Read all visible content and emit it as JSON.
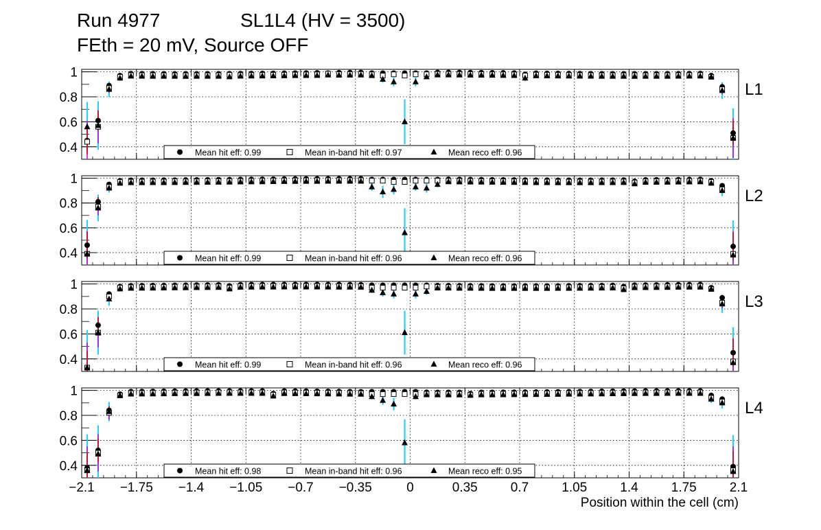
{
  "header": {
    "run": "Run 4977",
    "chamber": "SL1L4 (HV = 3500)",
    "settings": "FEth = 20 mV, Source OFF"
  },
  "legend_labels": {
    "hit": "Mean hit  eff: ",
    "inband": "Mean in-band hit eff: ",
    "reco": "Mean reco eff: "
  },
  "colors": {
    "hit_error": "#cc0000",
    "inband_error": "#cc00cc",
    "reco_error": "#33ccee",
    "grid": "#000000"
  },
  "chart_data": {
    "type": "scatter",
    "xlabel": "Position within the cell (cm)",
    "xlim": [
      -2.1,
      2.1
    ],
    "ylim": [
      0.3,
      1.02
    ],
    "x_ticks": [
      "-2.1",
      "-1.75",
      "-1.4",
      "-1.05",
      "-0.7",
      "-0.35",
      "0",
      "0.35",
      "0.7",
      "1.05",
      "1.4",
      "1.75",
      "2.1"
    ],
    "y_ticks": [
      "0.4",
      "0.6",
      "0.8",
      "1"
    ],
    "bins": 60,
    "grid": true,
    "panels": [
      {
        "label": "L1",
        "mean_hit_eff": "0.99",
        "mean_inband_eff": "0.97",
        "mean_reco_eff": "0.96",
        "special": {
          "0": [
            0.45,
            0.44,
            0.56
          ],
          "1": [
            0.61,
            0.56,
            0.57
          ],
          "2": [
            0.89,
            0.87,
            0.86
          ],
          "3": [
            0.97,
            0.96,
            0.95
          ],
          "40": [
            0.98,
            0.97,
            0.95
          ],
          "26": [
            0.99,
            0.98,
            0.97
          ],
          "27": [
            0.99,
            0.97,
            0.94
          ],
          "28": [
            0.99,
            0.98,
            0.92
          ],
          "29": [
            0.99,
            0.97,
            0.6
          ],
          "30": [
            0.99,
            0.98,
            0.92
          ],
          "31": [
            0.99,
            0.98,
            0.96
          ],
          "57": [
            0.97,
            0.96,
            0.96
          ],
          "58": [
            0.88,
            0.86,
            0.85
          ],
          "59": [
            0.51,
            0.47,
            0.47
          ]
        },
        "dips": [
          [
            13,
            0.985,
            0.975,
            0.96
          ],
          [
            22,
            0.99,
            0.985,
            0.975
          ]
        ]
      },
      {
        "label": "L2",
        "mean_hit_eff": "0.99",
        "mean_inband_eff": "0.96",
        "mean_reco_eff": "0.96",
        "special": {
          "0": [
            0.46,
            0.39,
            0.39
          ],
          "1": [
            0.81,
            0.77,
            0.76
          ],
          "2": [
            0.95,
            0.93,
            0.92
          ],
          "3": [
            0.98,
            0.97,
            0.96
          ],
          "26": [
            0.99,
            0.98,
            0.93
          ],
          "27": [
            0.99,
            0.98,
            0.89
          ],
          "28": [
            0.99,
            0.97,
            0.91
          ],
          "29": [
            0.99,
            0.97,
            0.56
          ],
          "30": [
            0.99,
            0.98,
            0.93
          ],
          "31": [
            0.99,
            0.98,
            0.92
          ],
          "32": [
            0.99,
            0.98,
            0.95
          ],
          "57": [
            0.98,
            0.97,
            0.96
          ],
          "58": [
            0.94,
            0.91,
            0.9
          ],
          "59": [
            0.45,
            0.39,
            0.38
          ]
        },
        "dips": [
          [
            8,
            0.985,
            0.975,
            0.965
          ],
          [
            50,
            0.975,
            0.965,
            0.955
          ]
        ]
      },
      {
        "label": "L3",
        "mean_hit_eff": "0.99",
        "mean_inband_eff": "0.96",
        "mean_reco_eff": "0.96",
        "special": {
          "0": [
            0.33,
            0.33,
            0.33
          ],
          "1": [
            0.67,
            0.61,
            0.61
          ],
          "2": [
            0.92,
            0.9,
            0.88
          ],
          "3": [
            0.98,
            0.97,
            0.96
          ],
          "26": [
            0.99,
            0.97,
            0.95
          ],
          "27": [
            0.99,
            0.97,
            0.93
          ],
          "28": [
            0.99,
            0.97,
            0.92
          ],
          "29": [
            0.99,
            0.97,
            0.61
          ],
          "30": [
            0.99,
            0.97,
            0.92
          ],
          "31": [
            0.99,
            0.98,
            0.94
          ],
          "57": [
            0.97,
            0.96,
            0.96
          ],
          "58": [
            0.89,
            0.85,
            0.84
          ],
          "59": [
            0.45,
            0.38,
            0.37
          ]
        },
        "dips": [
          [
            13,
            0.985,
            0.97,
            0.96
          ],
          [
            49,
            0.98,
            0.965,
            0.955
          ]
        ]
      },
      {
        "label": "L4",
        "mean_hit_eff": "0.98",
        "mean_inband_eff": "0.96",
        "mean_reco_eff": "0.95",
        "special": {
          "0": [
            0.38,
            0.36,
            0.36
          ],
          "1": [
            0.52,
            0.5,
            0.49
          ],
          "2": [
            0.84,
            0.82,
            0.83
          ],
          "3": [
            0.97,
            0.96,
            0.96
          ],
          "26": [
            0.99,
            0.97,
            0.95
          ],
          "27": [
            0.99,
            0.97,
            0.92
          ],
          "28": [
            0.99,
            0.97,
            0.89
          ],
          "29": [
            0.99,
            0.97,
            0.58
          ],
          "30": [
            0.99,
            0.97,
            0.95
          ],
          "57": [
            0.96,
            0.94,
            0.93
          ],
          "58": [
            0.93,
            0.91,
            0.9
          ],
          "59": [
            0.39,
            0.36,
            0.35
          ]
        },
        "dips": [
          [
            17,
            0.975,
            0.965,
            0.955
          ],
          [
            35,
            0.975,
            0.965,
            0.96
          ]
        ]
      }
    ]
  }
}
